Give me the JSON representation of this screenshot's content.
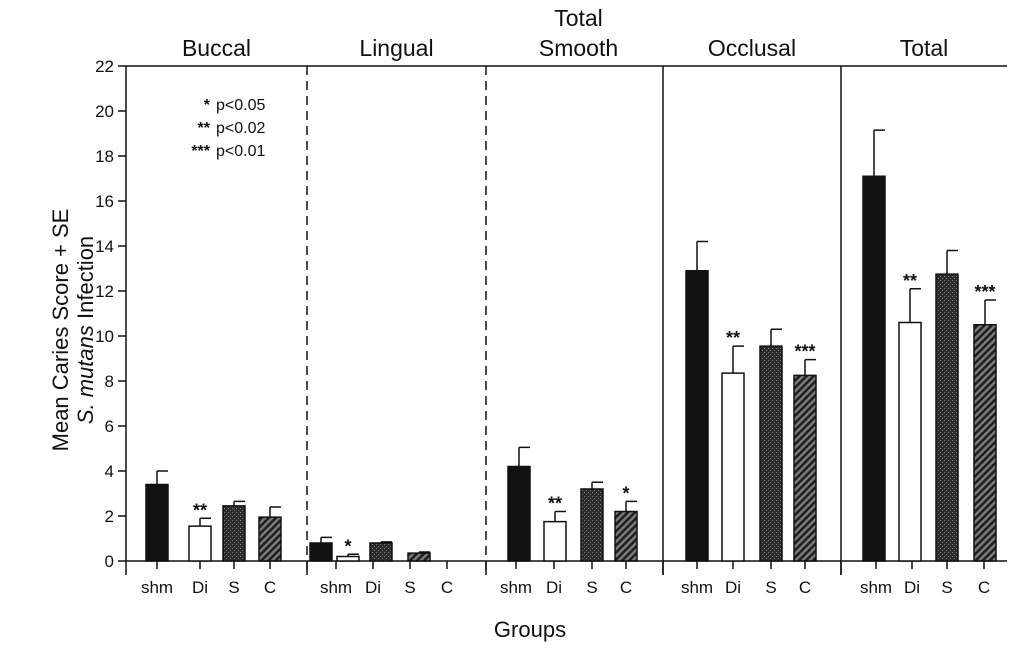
{
  "chart_data": {
    "type": "bar",
    "ylabel_line1": "Mean  Caries Score + SE",
    "ylabel_line2_italic": "S. mutans",
    "ylabel_line2_rest": " Infection",
    "xlabel": "Groups",
    "ylim": [
      0,
      22
    ],
    "yticks": [
      0,
      2,
      4,
      6,
      8,
      10,
      12,
      14,
      16,
      18,
      20,
      22
    ],
    "categories": [
      "shm",
      "Di",
      "S",
      "C"
    ],
    "fills": {
      "shm": "solid-black",
      "Di": "white",
      "S": "dark-dotted",
      "C": "diagonal-hatch"
    },
    "panels": [
      {
        "title": [
          "Buccal"
        ],
        "values": [
          3.4,
          1.55,
          2.45,
          1.95
        ],
        "errors": [
          0.6,
          0.35,
          0.2,
          0.45
        ],
        "sig": [
          "",
          "**",
          "",
          ""
        ],
        "right_divider": "dashed"
      },
      {
        "title": [
          "Lingual"
        ],
        "values": [
          0.8,
          0.2,
          0.8,
          0.35
        ],
        "errors": [
          0.25,
          0.1,
          0.05,
          0.05
        ],
        "sig": [
          "",
          "*",
          "",
          ""
        ],
        "right_divider": "dashed"
      },
      {
        "title": [
          "Total",
          "Smooth"
        ],
        "values": [
          4.2,
          1.75,
          3.2,
          2.2
        ],
        "errors": [
          0.85,
          0.45,
          0.3,
          0.45
        ],
        "sig": [
          "",
          "**",
          "",
          "*"
        ],
        "right_divider": "solid"
      },
      {
        "title": [
          "Occlusal"
        ],
        "values": [
          12.9,
          8.35,
          9.55,
          8.25
        ],
        "errors": [
          1.3,
          1.2,
          0.75,
          0.7
        ],
        "sig": [
          "",
          "**",
          "",
          "***"
        ],
        "right_divider": "solid"
      },
      {
        "title": [
          "Total"
        ],
        "values": [
          17.1,
          10.6,
          12.75,
          10.5
        ],
        "errors": [
          2.05,
          1.5,
          1.05,
          1.1
        ],
        "sig": [
          "",
          "**",
          "",
          "***"
        ],
        "right_divider": "none"
      }
    ],
    "legend": [
      {
        "stars": "*",
        "text": "p<0.05"
      },
      {
        "stars": "**",
        "text": "p<0.02"
      },
      {
        "stars": "***",
        "text": "p<0.01"
      }
    ],
    "grid": false,
    "legend_position": "top-left"
  }
}
